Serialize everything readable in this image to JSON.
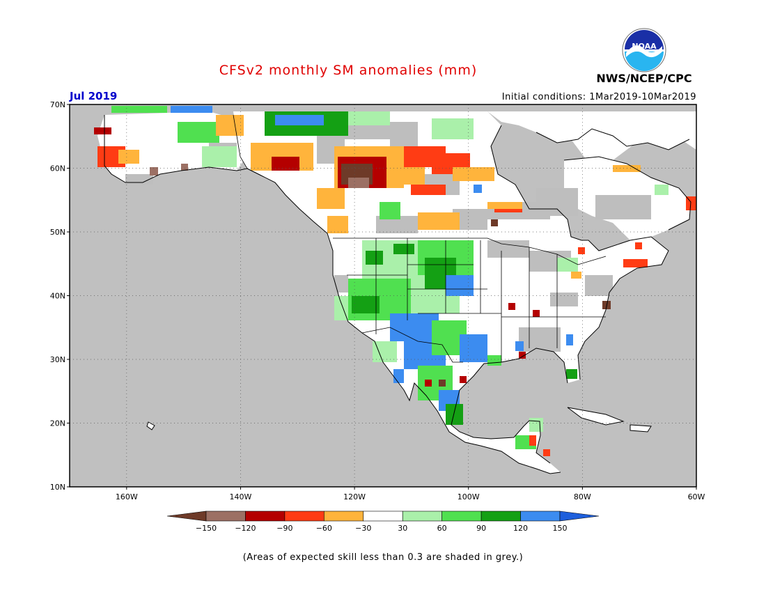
{
  "header": {
    "title": "CFSv2 monthly SM anomalies (mm)",
    "agency": "NWS/NCEP/CPC",
    "logo_text": "NOAA",
    "valid_month": "Jul 2019",
    "initial_conditions": "Initial conditions: 1Mar2019-10Mar2019"
  },
  "footnote": "(Areas of expected skill less than 0.3 are shaded in grey.)",
  "colors": {
    "ocean": "#c0c0c0",
    "low_skill": "#bebebe",
    "land_neutral": "#ffffff",
    "title": "#e00000",
    "month": "#0000cc"
  },
  "map": {
    "lon_range": [
      -170,
      -60
    ],
    "lat_range": [
      10,
      70
    ],
    "lon_ticks": [
      {
        "value": -160,
        "label": "160W"
      },
      {
        "value": -140,
        "label": "140W"
      },
      {
        "value": -120,
        "label": "120W"
      },
      {
        "value": -100,
        "label": "100W"
      },
      {
        "value": -80,
        "label": "80W"
      },
      {
        "value": -60,
        "label": "60W"
      }
    ],
    "lat_ticks": [
      {
        "value": 70,
        "label": "70N"
      },
      {
        "value": 60,
        "label": "60N"
      },
      {
        "value": 50,
        "label": "50N"
      },
      {
        "value": 40,
        "label": "40N"
      },
      {
        "value": 30,
        "label": "30N"
      },
      {
        "value": 20,
        "label": "20N"
      },
      {
        "value": 10,
        "label": "10N"
      }
    ],
    "gridlines": "dotted"
  },
  "colorbar": {
    "bins": [
      {
        "color": "#6e3a28"
      },
      {
        "color": "#9c7064"
      },
      {
        "color": "#b40000"
      },
      {
        "color": "#ff3c14"
      },
      {
        "color": "#ffb43c"
      },
      {
        "color": "#ffffff"
      },
      {
        "color": "#aaf0aa"
      },
      {
        "color": "#50e050"
      },
      {
        "color": "#14a014"
      },
      {
        "color": "#3c8cf0"
      },
      {
        "color": "#1e5fdc"
      }
    ],
    "labels": [
      "−150",
      "−120",
      "−90",
      "−60",
      "−30",
      "30",
      "60",
      "90",
      "120",
      "150"
    ]
  }
}
